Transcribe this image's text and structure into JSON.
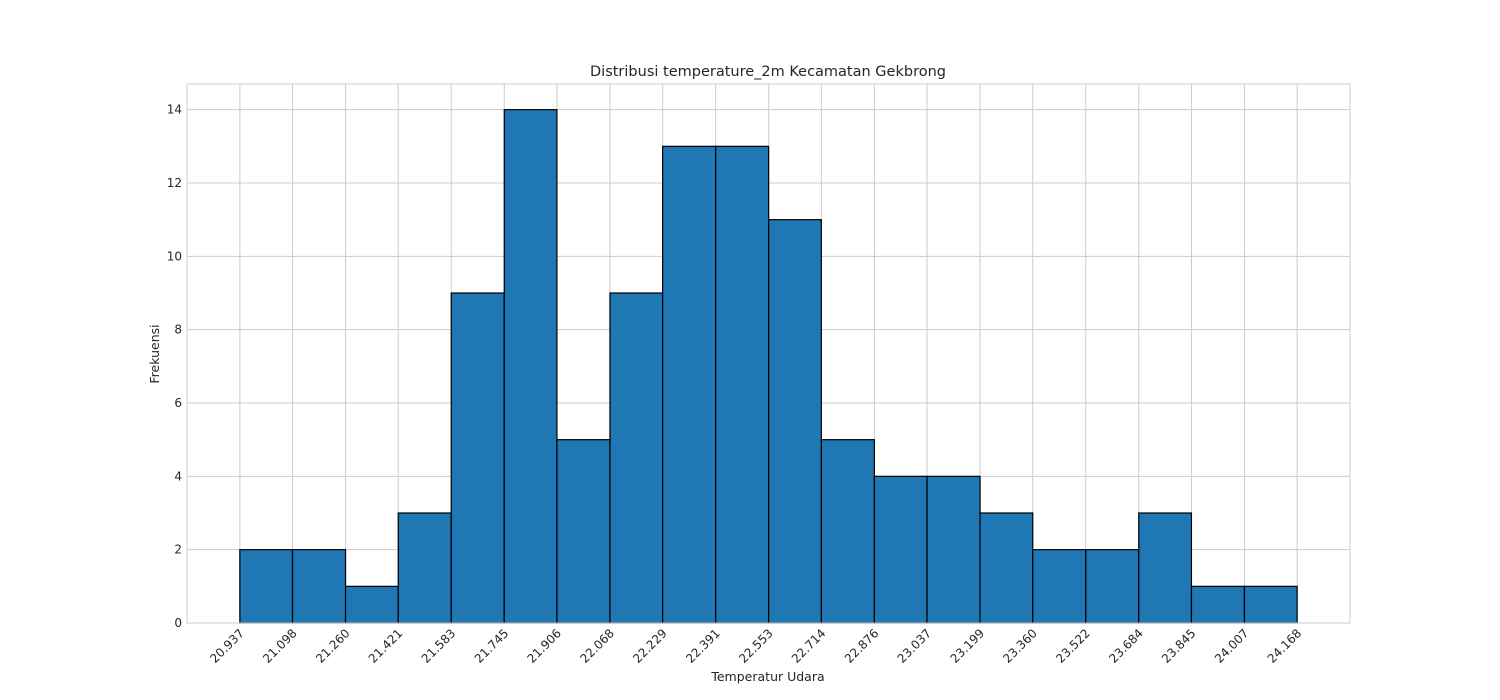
{
  "chart_data": {
    "type": "bar",
    "title": "Distribusi temperature_2m Kecamatan Gekbrong",
    "xlabel": "Temperatur Udara",
    "ylabel": "Frekuensi",
    "bin_edges": [
      20.937,
      21.098,
      21.26,
      21.421,
      21.583,
      21.745,
      21.906,
      22.068,
      22.229,
      22.391,
      22.553,
      22.714,
      22.876,
      23.037,
      23.199,
      23.36,
      23.522,
      23.684,
      23.845,
      24.007,
      24.168
    ],
    "x_tick_labels": [
      "20.937",
      "21.098",
      "21.260",
      "21.421",
      "21.583",
      "21.745",
      "21.906",
      "22.068",
      "22.229",
      "22.391",
      "22.553",
      "22.714",
      "22.876",
      "23.037",
      "23.199",
      "23.360",
      "23.522",
      "23.684",
      "23.845",
      "24.007",
      "24.168"
    ],
    "values": [
      2,
      2,
      1,
      3,
      9,
      14,
      5,
      9,
      13,
      13,
      11,
      5,
      4,
      4,
      3,
      2,
      2,
      3,
      1,
      1
    ],
    "y_ticks": [
      0,
      2,
      4,
      6,
      8,
      10,
      12,
      14
    ],
    "ylim": [
      0,
      14.7
    ],
    "xlim": [
      20.7755,
      24.3295
    ],
    "grid": true,
    "bar_color": "#1f77b4",
    "edge_color": "#000000"
  }
}
